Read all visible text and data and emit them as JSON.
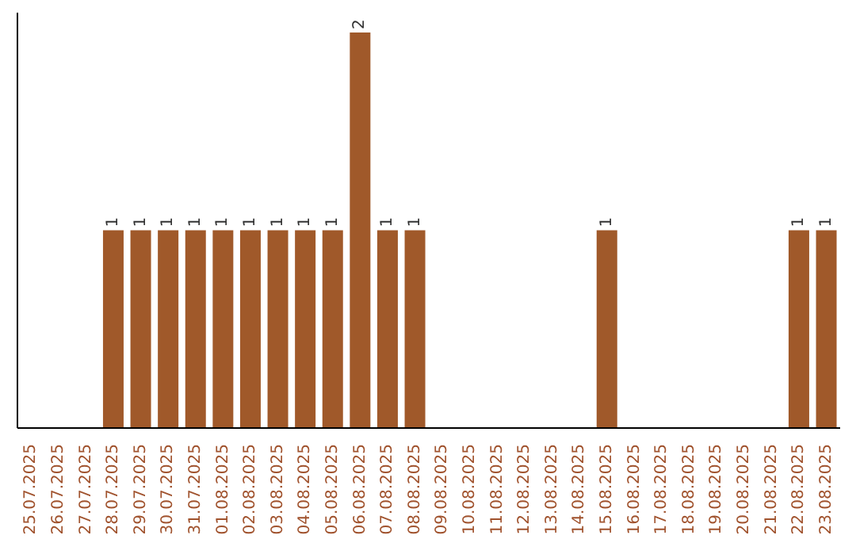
{
  "chart_data": {
    "type": "bar",
    "categories": [
      "25.07.2025",
      "26.07.2025",
      "27.07.2025",
      "28.07.2025",
      "29.07.2025",
      "30.07.2025",
      "31.07.2025",
      "01.08.2025",
      "02.08.2025",
      "03.08.2025",
      "04.08.2025",
      "05.08.2025",
      "06.08.2025",
      "07.08.2025",
      "08.08.2025",
      "09.08.2025",
      "10.08.2025",
      "11.08.2025",
      "12.08.2025",
      "13.08.2025",
      "14.08.2025",
      "15.08.2025",
      "16.08.2025",
      "17.08.2025",
      "18.08.2025",
      "19.08.2025",
      "20.08.2025",
      "21.08.2025",
      "22.08.2025",
      "23.08.2025"
    ],
    "values": [
      0,
      0,
      0,
      1,
      1,
      1,
      1,
      1,
      1,
      1,
      1,
      1,
      2,
      1,
      1,
      0,
      0,
      0,
      0,
      0,
      0,
      1,
      0,
      0,
      0,
      0,
      0,
      0,
      1,
      1
    ],
    "value_labels": [
      null,
      null,
      null,
      "1",
      "1",
      "1",
      "1",
      "1",
      "1",
      "1",
      "1",
      "1",
      "2",
      "1",
      "1",
      null,
      null,
      null,
      null,
      null,
      null,
      "1",
      null,
      null,
      null,
      null,
      null,
      null,
      "1",
      "1"
    ],
    "color": "#a0592a",
    "ylim": [
      0,
      2.1
    ],
    "tick_labels": "x",
    "grid": false,
    "legend": false
  }
}
